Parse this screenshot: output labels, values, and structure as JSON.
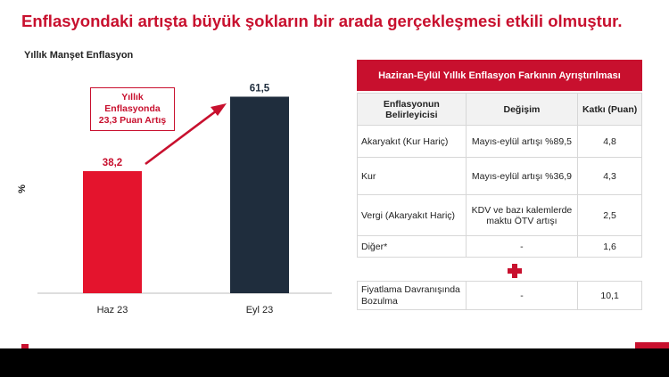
{
  "slide": {
    "title": "Enflasyondaki artışta büyük şokların bir arada gerçekleşmesi etkili olmuştur."
  },
  "chart_data": {
    "type": "bar",
    "title": "Yıllık Manşet Enflasyon",
    "ylabel": "%",
    "xlabel": "",
    "categories": [
      "Haz 23",
      "Eyl 23"
    ],
    "values": [
      38.2,
      61.5
    ],
    "value_labels": [
      "38,2",
      "61,5"
    ],
    "ylim": [
      0,
      70
    ],
    "grid": false,
    "bar_colors": [
      "#e4142d",
      "#1f2d3d"
    ],
    "annotation": {
      "lines": [
        "Yıllık",
        "Enflasyonda",
        "23,3 Puan Artış"
      ],
      "color": "#c8102e"
    }
  },
  "table": {
    "title": "Haziran-Eylül Yıllık Enflasyon Farkının Ayrıştırılması",
    "headers": [
      "Enflasyonun Belirleyicisi",
      "Değişim",
      "Katkı (Puan)"
    ],
    "rows": [
      {
        "factor": "Akaryakıt (Kur Hariç)",
        "change": "Mayıs-eylül artışı %89,5",
        "contribution": "4,8"
      },
      {
        "factor": "Kur",
        "change": "Mayıs-eylül artışı %36,9",
        "contribution": "4,3"
      },
      {
        "factor": "Vergi (Akaryakıt Hariç)",
        "change": "KDV ve bazı kalemlerde maktu ÖTV artışı",
        "contribution": "2,5"
      },
      {
        "factor": "Diğer*",
        "change": "-",
        "contribution": "1,6"
      }
    ],
    "extra_row": {
      "factor": "Fiyatlama Davranışında Bozulma",
      "change": "-",
      "contribution": "10,1"
    }
  },
  "colors": {
    "accent": "#c8102e",
    "dark_bar": "#1f2d3d",
    "red_bar": "#e4142d"
  }
}
